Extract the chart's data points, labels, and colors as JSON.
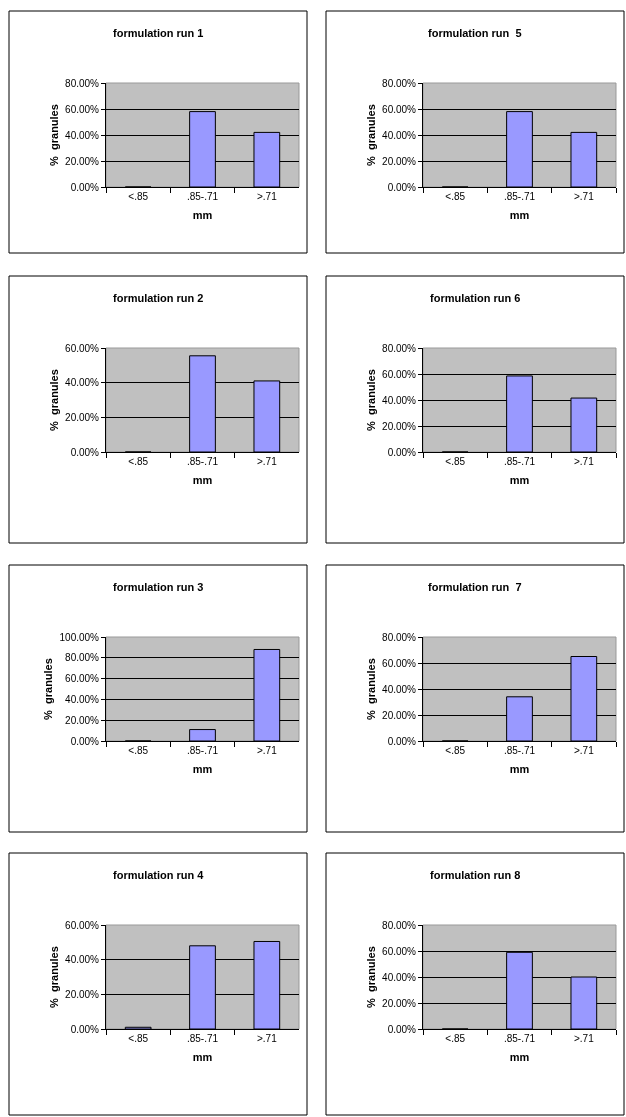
{
  "chart_data": [
    {
      "type": "bar",
      "title": "formulation run 1",
      "xlabel": "mm",
      "ylabel": "%  granules",
      "categories": [
        "<.85",
        ".85-.71",
        ">.71"
      ],
      "values": [
        0,
        58,
        42
      ],
      "color": "#9999ff",
      "ylim": [
        0,
        80
      ],
      "yticks": [
        {
          "value": 0,
          "label": "0.00%"
        },
        {
          "value": 20,
          "label": "20.00%"
        },
        {
          "value": 40,
          "label": "40.00%"
        },
        {
          "value": 60,
          "label": "60.00%"
        },
        {
          "value": 80,
          "label": "80.00%"
        }
      ],
      "grid": "y"
    },
    {
      "type": "bar",
      "title": "formulation run  5",
      "xlabel": "mm",
      "ylabel": "%  granules",
      "categories": [
        "<.85",
        ".85-.71",
        ">.71"
      ],
      "values": [
        0,
        58,
        42
      ],
      "color": "#9999ff",
      "ylim": [
        0,
        80
      ],
      "yticks": [
        {
          "value": 0,
          "label": "0.00%"
        },
        {
          "value": 20,
          "label": "20.00%"
        },
        {
          "value": 40,
          "label": "40.00%"
        },
        {
          "value": 60,
          "label": "60.00%"
        },
        {
          "value": 80,
          "label": "80.00%"
        }
      ],
      "grid": "y"
    },
    {
      "type": "bar",
      "title": "formulation run 2",
      "xlabel": "mm",
      "ylabel": "%  granules",
      "categories": [
        "<.85",
        ".85-.71",
        ">.71"
      ],
      "values": [
        0,
        55.5,
        41
      ],
      "color": "#9999ff",
      "ylim": [
        0,
        60
      ],
      "yticks": [
        {
          "value": 0,
          "label": "0.00%"
        },
        {
          "value": 20,
          "label": "20.00%"
        },
        {
          "value": 40,
          "label": "40.00%"
        },
        {
          "value": 60,
          "label": "60.00%"
        }
      ],
      "grid": "y"
    },
    {
      "type": "bar",
      "title": "formulation run 6",
      "xlabel": "mm",
      "ylabel": "%  granules",
      "categories": [
        "<.85",
        ".85-.71",
        ">.71"
      ],
      "values": [
        0,
        58.5,
        41.5
      ],
      "color": "#9999ff",
      "ylim": [
        0,
        80
      ],
      "yticks": [
        {
          "value": 0,
          "label": "0.00%"
        },
        {
          "value": 20,
          "label": "20.00%"
        },
        {
          "value": 40,
          "label": "40.00%"
        },
        {
          "value": 60,
          "label": "60.00%"
        },
        {
          "value": 80,
          "label": "80.00%"
        }
      ],
      "grid": "y"
    },
    {
      "type": "bar",
      "title": "formulation run 3",
      "xlabel": "mm",
      "ylabel": "%  granules",
      "categories": [
        "<.85",
        ".85-.71",
        ">.71"
      ],
      "values": [
        0,
        11,
        88
      ],
      "color": "#9999ff",
      "ylim": [
        0,
        100
      ],
      "yticks": [
        {
          "value": 0,
          "label": "0.00%"
        },
        {
          "value": 20,
          "label": "20.00%"
        },
        {
          "value": 40,
          "label": "40.00%"
        },
        {
          "value": 60,
          "label": "60.00%"
        },
        {
          "value": 80,
          "label": "80.00%"
        },
        {
          "value": 100,
          "label": "100.00%"
        }
      ],
      "grid": "y"
    },
    {
      "type": "bar",
      "title": "formulation run  7",
      "xlabel": "mm",
      "ylabel": "%  granules",
      "categories": [
        "<.85",
        ".85-.71",
        ">.71"
      ],
      "values": [
        0,
        34,
        65
      ],
      "color": "#9999ff",
      "ylim": [
        0,
        80
      ],
      "yticks": [
        {
          "value": 0,
          "label": "0.00%"
        },
        {
          "value": 20,
          "label": "20.00%"
        },
        {
          "value": 40,
          "label": "40.00%"
        },
        {
          "value": 60,
          "label": "60.00%"
        },
        {
          "value": 80,
          "label": "80.00%"
        }
      ],
      "grid": "y"
    },
    {
      "type": "bar",
      "title": "formulation run 4",
      "xlabel": "mm",
      "ylabel": "%  granules",
      "categories": [
        "<.85",
        ".85-.71",
        ">.71"
      ],
      "values": [
        1,
        48,
        50.5
      ],
      "color": "#9999ff",
      "ylim": [
        0,
        60
      ],
      "yticks": [
        {
          "value": 0,
          "label": "0.00%"
        },
        {
          "value": 20,
          "label": "20.00%"
        },
        {
          "value": 40,
          "label": "40.00%"
        },
        {
          "value": 60,
          "label": "60.00%"
        }
      ],
      "grid": "y"
    },
    {
      "type": "bar",
      "title": "formulation run 8",
      "xlabel": "mm",
      "ylabel": "%  granules",
      "categories": [
        "<.85",
        ".85-.71",
        ">.71"
      ],
      "values": [
        0,
        59,
        40
      ],
      "color": "#9999ff",
      "ylim": [
        0,
        80
      ],
      "yticks": [
        {
          "value": 0,
          "label": "0.00%"
        },
        {
          "value": 20,
          "label": "20.00%"
        },
        {
          "value": 40,
          "label": "40.00%"
        },
        {
          "value": 60,
          "label": "60.00%"
        },
        {
          "value": 80,
          "label": "80.00%"
        }
      ],
      "grid": "y"
    }
  ]
}
